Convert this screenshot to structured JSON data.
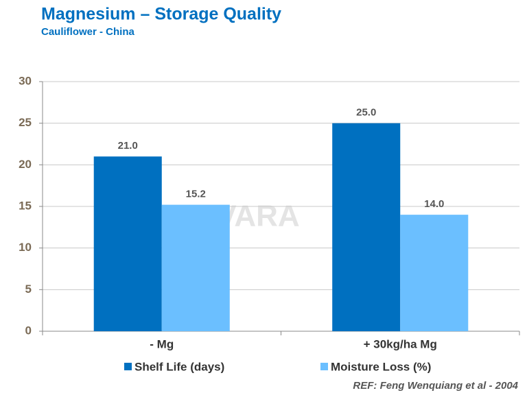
{
  "chart_data": {
    "type": "bar",
    "title": "Magnesium – Storage Quality",
    "subtitle": "Cauliflower - China",
    "categories": [
      "- Mg",
      "+ 30kg/ha Mg"
    ],
    "series": [
      {
        "name": "Shelf Life (days)",
        "color": "#0070c0",
        "values": [
          21,
          25
        ],
        "value_labels": [
          "21.0",
          "25.0"
        ]
      },
      {
        "name": "Moisture Loss (%)",
        "color": "#6bbfff",
        "values": [
          15.2,
          14
        ],
        "value_labels": [
          "15.2",
          "14.0"
        ]
      }
    ],
    "ylim": [
      0,
      30
    ],
    "yticks": [
      0,
      5,
      10,
      15,
      20,
      25,
      30
    ],
    "grid": true,
    "annotation": "REF: Feng Wenquiang et al - 2004",
    "watermark": "VARA"
  }
}
